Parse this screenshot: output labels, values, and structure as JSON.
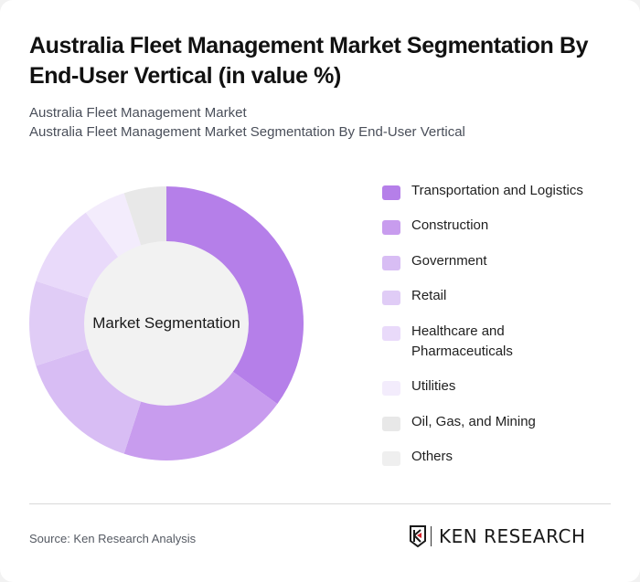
{
  "header": {
    "title": "Australia Fleet Management Market Segmentation By End-User Vertical (in value %)",
    "subtitle_line1": "Australia Fleet Management Market",
    "subtitle_line2": "Australia Fleet Management Market Segmentation By End-User Vertical"
  },
  "chart": {
    "center_label": "Market Segmentation"
  },
  "legend": [
    {
      "label": "Transportation and Logistics",
      "color": "#b57fe9"
    },
    {
      "label": "Construction",
      "color": "#c89cee"
    },
    {
      "label": "Government",
      "color": "#d8bdf4"
    },
    {
      "label": "Retail",
      "color": "#e0ccf6"
    },
    {
      "label": "Healthcare and Pharmaceuticals",
      "color": "#e9dafa"
    },
    {
      "label": "Utilities",
      "color": "#f3ecfc"
    },
    {
      "label": "Oil, Gas, and Mining",
      "color": "#e8e8e8"
    },
    {
      "label": "Others",
      "color": "#efefef"
    }
  ],
  "footer": {
    "source": "Source: Ken Research Analysis",
    "logo_text": "KEN RESEARCH"
  },
  "chart_data": {
    "type": "pie",
    "subtype": "donut",
    "title": "Australia Fleet Management Market Segmentation By End-User Vertical (in value %)",
    "subtitle": "Australia Fleet Management Market Segmentation By End-User Vertical",
    "center_label": "Market Segmentation",
    "categories": [
      "Transportation and Logistics",
      "Construction",
      "Government",
      "Retail",
      "Healthcare and Pharmaceuticals",
      "Utilities",
      "Oil, Gas, and Mining",
      "Others"
    ],
    "values": [
      35,
      20,
      15,
      10,
      10,
      5,
      5,
      0
    ],
    "colors": [
      "#b57fe9",
      "#c89cee",
      "#d8bdf4",
      "#e0ccf6",
      "#e9dafa",
      "#f3ecfc",
      "#e8e8e8",
      "#efefef"
    ],
    "legend_position": "right",
    "unit": "%",
    "source": "Source: Ken Research Analysis"
  }
}
